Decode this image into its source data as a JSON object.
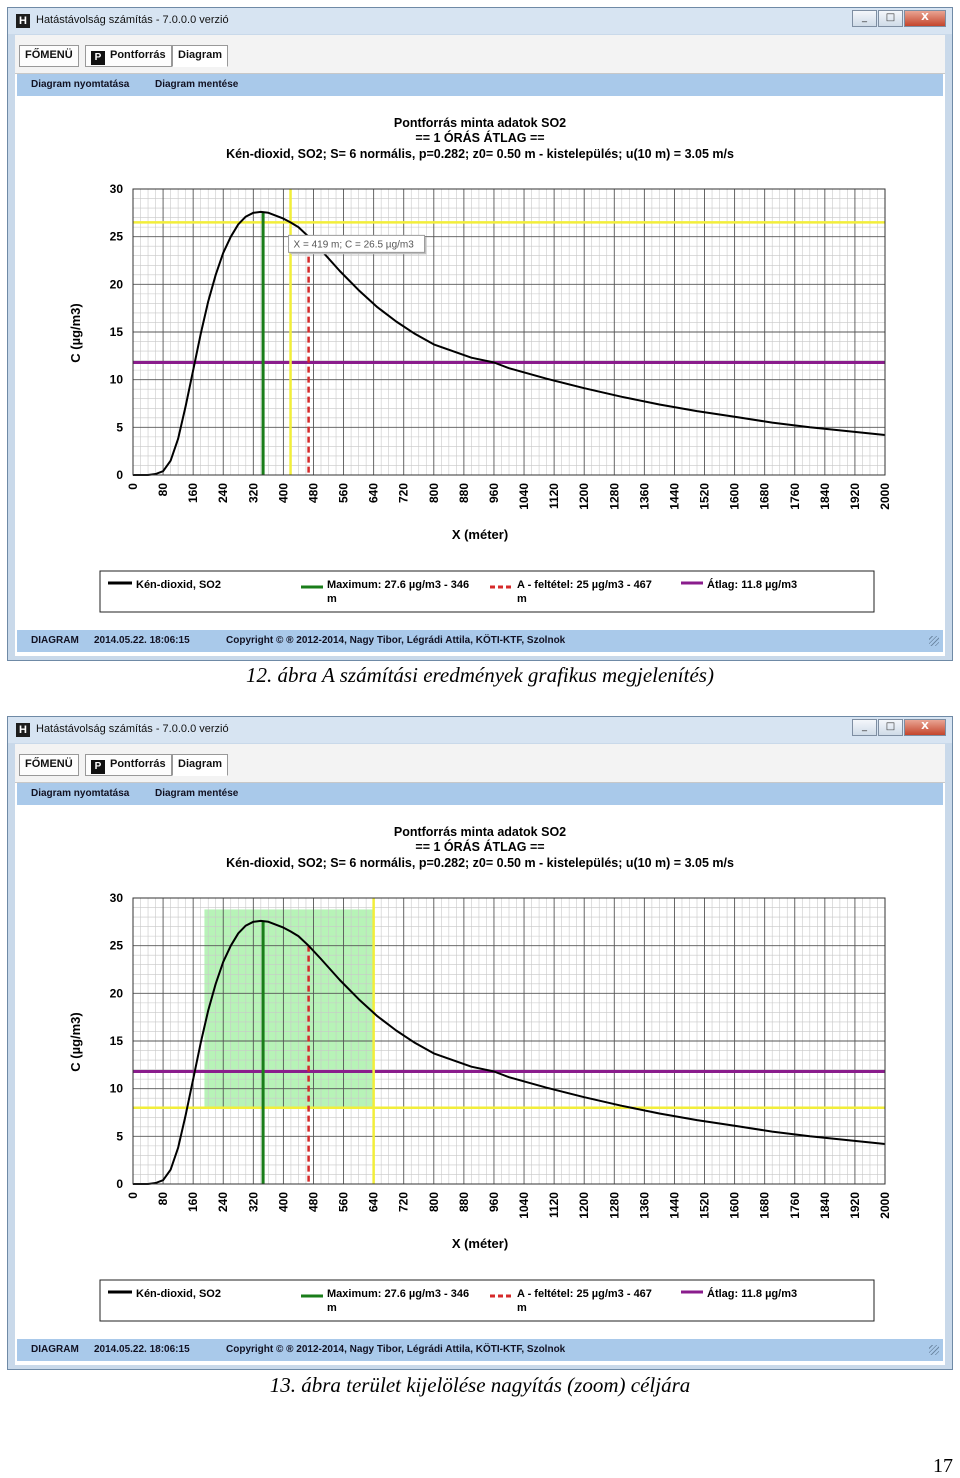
{
  "app": {
    "window_title": "Hatástávolság számítás - 7.0.0.0 verzió",
    "app_icon_letter": "H",
    "window_buttons": {
      "minimize": "_",
      "maximize": "□",
      "close": "X"
    },
    "tabs": [
      {
        "label": "FŐMENÜ"
      },
      {
        "icon_letter": "P",
        "label": "Pontforrás"
      },
      {
        "label": "Diagram"
      }
    ],
    "toolbar": {
      "print_label": "Diagram nyomtatása",
      "save_label": "Diagram mentése"
    },
    "status": {
      "mode": "DIAGRAM",
      "datetime": "2014.05.22. 18:06:15",
      "copyright": "Copyright © ® 2012-2014, Nagy Tibor, Légrádi Attila, KÖTI-KTF, Szolnok"
    }
  },
  "chart_data": {
    "type": "line",
    "title": "Pontforrás minta adatok SO2",
    "subtitle": "== 1 ÓRÁS ÁTLAG ==",
    "subtitle2": "Kén-dioxid, SO2; S= 6 normális, p=0.282; z0= 0.50 m - kistelepülés; u(10 m) = 3.05 m/s",
    "xlabel": "X (méter)",
    "ylabel": "C (µg/m3)",
    "xlim": [
      0,
      2000
    ],
    "ylim": [
      0,
      30
    ],
    "x_ticks": [
      0,
      80,
      160,
      240,
      320,
      400,
      480,
      560,
      640,
      720,
      800,
      880,
      960,
      1040,
      1120,
      1200,
      1280,
      1360,
      1440,
      1520,
      1600,
      1680,
      1760,
      1840,
      1920,
      2000
    ],
    "y_ticks": [
      0,
      5,
      10,
      15,
      20,
      25,
      30
    ],
    "grid": true,
    "series": [
      {
        "name": "Kén-dioxid, SO2",
        "color": "#000000",
        "x": [
          0,
          40,
          60,
          80,
          100,
          120,
          140,
          160,
          180,
          200,
          220,
          240,
          260,
          280,
          300,
          320,
          340,
          360,
          380,
          400,
          419,
          440,
          467,
          500,
          550,
          600,
          650,
          700,
          750,
          800,
          900,
          960,
          1000,
          1100,
          1200,
          1300,
          1400,
          1500,
          1600,
          1700,
          1800,
          1900,
          2000
        ],
        "y": [
          0,
          0,
          0.1,
          0.4,
          1.5,
          3.8,
          7.2,
          11,
          14.8,
          18.2,
          21,
          23.3,
          25,
          26.3,
          27.1,
          27.5,
          27.6,
          27.5,
          27.2,
          26.9,
          26.5,
          26,
          25,
          23.6,
          21.4,
          19.4,
          17.6,
          16.1,
          14.8,
          13.7,
          12.3,
          11.8,
          11.2,
          10.1,
          9.1,
          8.2,
          7.4,
          6.7,
          6.1,
          5.5,
          5.0,
          4.6,
          4.2
        ]
      },
      {
        "name": "Maximum: 27.6 µg/m3 - 346 m",
        "color": "#1a7d1a",
        "x": 346
      },
      {
        "name": "A - feltétel: 25 µg/m3 - 467 m",
        "color": "#d62a2a",
        "x": 467
      },
      {
        "name": "Átlag: 11.8 µg/m3",
        "color": "#8a1c8c",
        "y": 11.8
      }
    ],
    "legend_position": "bottom",
    "figures": [
      {
        "caption": "12. ábra A számítási eredmények grafikus megjelenítés)",
        "cursor": {
          "x": 419,
          "y": 26.5,
          "color": "#f2ee3a",
          "tooltip": "X = 419 m;  C = 26.5 µg/m3"
        }
      },
      {
        "caption": "13. ábra terület kijelölése nagyítás (zoom) céljára",
        "zoom_selection": {
          "x_from": 190,
          "x_to": 640,
          "y_from": 8,
          "y_to": 28.8,
          "color": "#9fef9f"
        }
      }
    ]
  },
  "page_number": "17"
}
